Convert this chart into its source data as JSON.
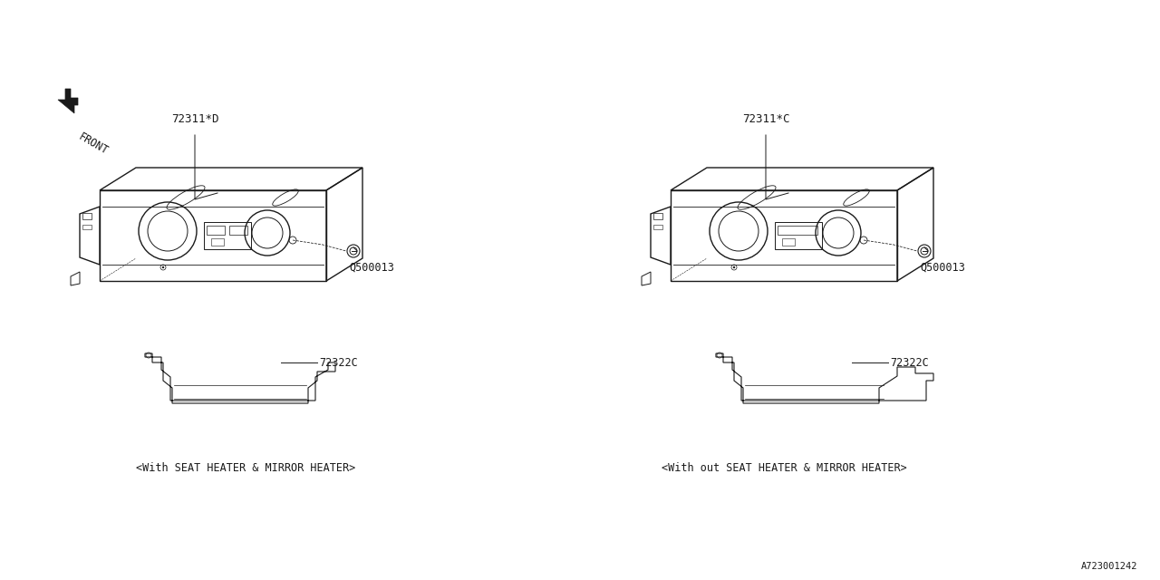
{
  "bg_color": "#ffffff",
  "line_color": "#1a1a1a",
  "fig_width": 12.8,
  "fig_height": 6.4,
  "dpi": 100,
  "diagram_id": "A723001242",
  "left_label": "<With SEAT HEATER & MIRROR HEATER>",
  "right_label": "<With out SEAT HEATER & MIRROR HEATER>",
  "left_part1": "72311*D",
  "right_part1": "72311*C",
  "screw_label": "Q500013",
  "bracket_label": "72322C",
  "front_label": "FRONT"
}
